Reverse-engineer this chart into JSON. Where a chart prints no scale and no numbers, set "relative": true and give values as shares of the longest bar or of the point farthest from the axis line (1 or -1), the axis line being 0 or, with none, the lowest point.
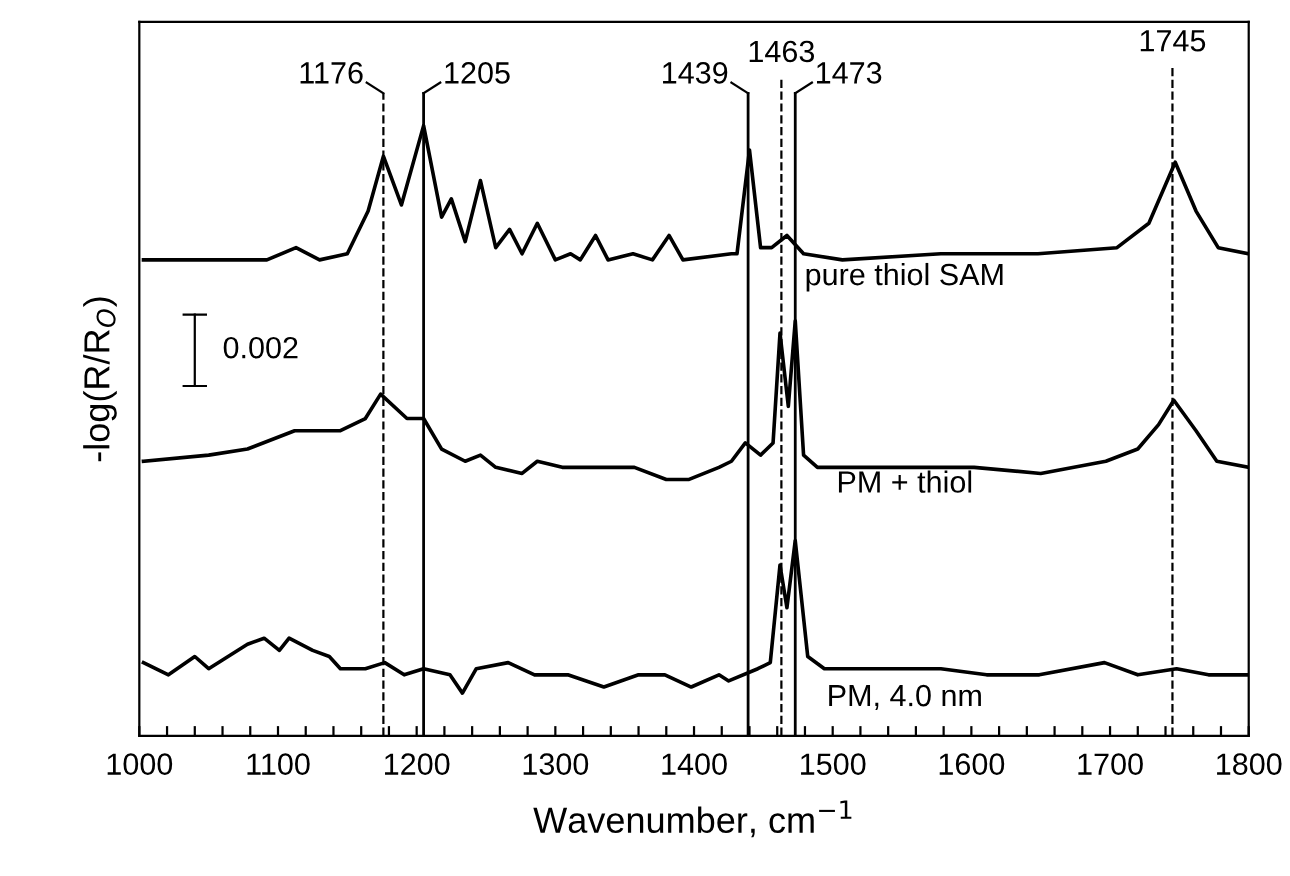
{
  "chart_data": {
    "type": "line",
    "relative": true,
    "xlabel": "Wavenumber, cm$^{−1}$",
    "ylabel": "-log(R/R$_{O}$)",
    "tick_labels": "x",
    "grid": false,
    "legend": false,
    "marker": "none",
    "line_style": "solid",
    "xlim": [
      1000,
      1800
    ],
    "xticks": [
      1000,
      {
        "value": 1020,
        "label": null
      },
      {
        "value": 1040,
        "label": null
      },
      {
        "value": 1060,
        "label": null
      },
      {
        "value": 1080,
        "label": null
      },
      1100,
      {
        "value": 1120,
        "label": null
      },
      {
        "value": 1140,
        "label": null
      },
      {
        "value": 1160,
        "label": null
      },
      {
        "value": 1180,
        "label": null
      },
      1200,
      {
        "value": 1220,
        "label": null
      },
      {
        "value": 1240,
        "label": null
      },
      {
        "value": 1260,
        "label": null
      },
      {
        "value": 1280,
        "label": null
      },
      1300,
      {
        "value": 1320,
        "label": null
      },
      {
        "value": 1340,
        "label": null
      },
      {
        "value": 1360,
        "label": null
      },
      {
        "value": 1380,
        "label": null
      },
      1400,
      {
        "value": 1420,
        "label": null
      },
      {
        "value": 1440,
        "label": null
      },
      {
        "value": 1460,
        "label": null
      },
      {
        "value": 1480,
        "label": null
      },
      1500,
      {
        "value": 1520,
        "label": null
      },
      {
        "value": 1540,
        "label": null
      },
      {
        "value": 1560,
        "label": null
      },
      {
        "value": 1580,
        "label": null
      },
      1600,
      {
        "value": 1620,
        "label": null
      },
      {
        "value": 1640,
        "label": null
      },
      {
        "value": 1660,
        "label": null
      },
      {
        "value": 1680,
        "label": null
      },
      1700,
      {
        "value": 1720,
        "label": null
      },
      {
        "value": 1740,
        "label": null
      },
      {
        "value": 1760,
        "label": null
      },
      {
        "value": 1780,
        "label": null
      },
      1800
    ],
    "series": [
      {
        "name": "pure thiol SAM",
        "color": "#000000",
        "x": [
          1003,
          1049,
          1092,
          1113,
          1130,
          1150,
          1165,
          1176,
          1189,
          1205,
          1218,
          1225,
          1235,
          1246,
          1257,
          1267,
          1276,
          1287,
          1300,
          1311,
          1318,
          1329,
          1338,
          1356,
          1370,
          1382,
          1392,
          1427,
          1431,
          1440,
          1448,
          1456,
          1467,
          1479,
          1507,
          1578,
          1648,
          1705,
          1728,
          1747,
          1762,
          1778,
          1800
        ],
        "values": [
          0.78,
          0.78,
          0.78,
          0.8,
          0.78,
          0.79,
          0.86,
          0.95,
          0.87,
          1.0,
          0.85,
          0.88,
          0.81,
          0.91,
          0.8,
          0.83,
          0.79,
          0.84,
          0.78,
          0.79,
          0.78,
          0.82,
          0.78,
          0.79,
          0.78,
          0.82,
          0.78,
          0.79,
          0.79,
          0.96,
          0.8,
          0.8,
          0.82,
          0.79,
          0.78,
          0.79,
          0.79,
          0.8,
          0.84,
          0.94,
          0.86,
          0.8,
          0.79
        ]
      },
      {
        "name": "PM + thiol",
        "color": "#000000",
        "x": [
          1003,
          1050,
          1078,
          1112,
          1145,
          1163,
          1174,
          1193,
          1205,
          1218,
          1235,
          1246,
          1257,
          1276,
          1287,
          1305,
          1333,
          1357,
          1380,
          1396,
          1418,
          1427,
          1437,
          1448,
          1457,
          1462,
          1468,
          1473,
          1479,
          1489,
          1531,
          1602,
          1650,
          1697,
          1720,
          1735,
          1746,
          1762,
          1777,
          1800
        ],
        "values": [
          0.45,
          0.46,
          0.47,
          0.5,
          0.5,
          0.52,
          0.56,
          0.52,
          0.52,
          0.47,
          0.45,
          0.46,
          0.44,
          0.43,
          0.45,
          0.44,
          0.44,
          0.44,
          0.42,
          0.42,
          0.44,
          0.45,
          0.48,
          0.46,
          0.48,
          0.66,
          0.54,
          0.68,
          0.46,
          0.44,
          0.44,
          0.44,
          0.43,
          0.45,
          0.47,
          0.51,
          0.55,
          0.5,
          0.45,
          0.44
        ]
      },
      {
        "name": "PM, 4.0 nm",
        "color": "#000000",
        "x": [
          1003,
          1021,
          1040,
          1050,
          1064,
          1078,
          1090,
          1101,
          1108,
          1125,
          1137,
          1145,
          1163,
          1177,
          1191,
          1205,
          1224,
          1233,
          1243,
          1266,
          1285,
          1309,
          1335,
          1360,
          1379,
          1398,
          1418,
          1425,
          1446,
          1455,
          1462,
          1467,
          1473,
          1482,
          1494,
          1531,
          1578,
          1611,
          1649,
          1696,
          1720,
          1748,
          1771,
          1800
        ],
        "values": [
          0.12,
          0.1,
          0.13,
          0.11,
          0.13,
          0.15,
          0.16,
          0.14,
          0.16,
          0.14,
          0.13,
          0.11,
          0.11,
          0.12,
          0.1,
          0.11,
          0.1,
          0.07,
          0.11,
          0.12,
          0.1,
          0.1,
          0.08,
          0.1,
          0.1,
          0.08,
          0.1,
          0.09,
          0.11,
          0.12,
          0.28,
          0.21,
          0.32,
          0.13,
          0.11,
          0.11,
          0.11,
          0.1,
          0.1,
          0.12,
          0.1,
          0.11,
          0.1,
          0.1
        ]
      }
    ],
    "ref_lines": [
      {
        "axis": "x",
        "value": 1176,
        "label": "1176",
        "line_style": "dashed"
      },
      {
        "axis": "x",
        "value": 1205,
        "label": "1205",
        "line_style": "solid"
      },
      {
        "axis": "x",
        "value": 1439,
        "label": "1439",
        "line_style": "solid"
      },
      {
        "axis": "x",
        "value": 1463,
        "label": "1463",
        "line_style": "dashed"
      },
      {
        "axis": "x",
        "value": 1473,
        "label": "1473",
        "line_style": "solid"
      },
      {
        "axis": "x",
        "value": 1745,
        "label": "1745",
        "line_style": "dashed"
      }
    ],
    "annotations": [
      "0.002"
    ]
  }
}
